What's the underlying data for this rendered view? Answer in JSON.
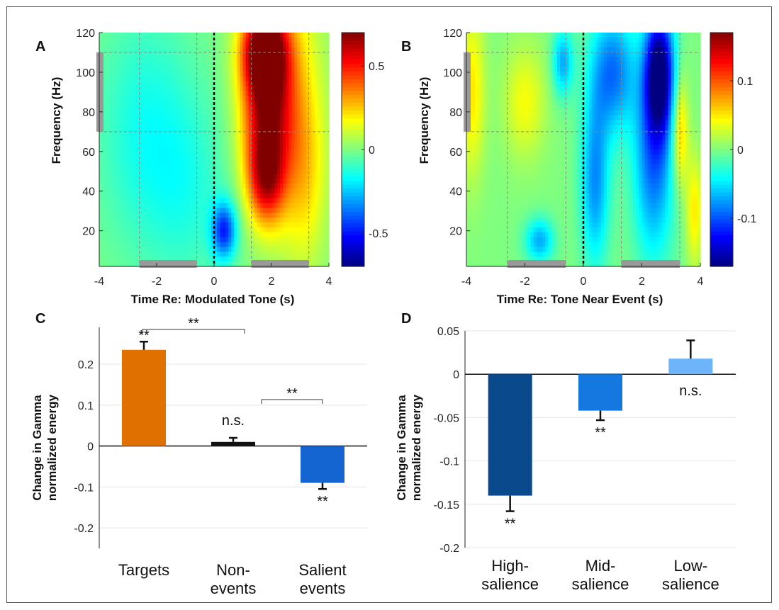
{
  "chart_data": [
    {
      "panel": "A",
      "type": "heatmap",
      "xlabel": "Time Re: Modulated Tone (s)",
      "ylabel": "Frequency (Hz)",
      "xlim": [
        -4,
        4
      ],
      "ylim": [
        2,
        120
      ],
      "xticks": [
        "-4",
        "-2",
        "0",
        "2",
        "4"
      ],
      "yticks": [
        "20",
        "40",
        "60",
        "80",
        "100",
        "120"
      ],
      "colorbar": {
        "ticks": [
          "-0.5",
          "0",
          "0.5"
        ],
        "range": [
          -0.7,
          0.7
        ]
      },
      "event_time": 0,
      "gamma_band": [
        70,
        110
      ],
      "baseline_window": [
        -2.6,
        -0.6
      ],
      "analysis_window": [
        1.3,
        3.3
      ],
      "blobs": [
        {
          "t": 1.75,
          "f": 112,
          "st": 0.55,
          "sf": 16,
          "v": 0.72
        },
        {
          "t": 1.8,
          "f": 78,
          "st": 0.6,
          "sf": 26,
          "v": 0.55
        },
        {
          "t": 1.8,
          "f": 45,
          "st": 0.45,
          "sf": 16,
          "v": 0.42
        },
        {
          "t": 2.7,
          "f": 85,
          "st": 0.75,
          "sf": 45,
          "v": 0.22
        },
        {
          "t": 3.2,
          "f": 45,
          "st": 0.5,
          "sf": 30,
          "v": 0.14
        },
        {
          "t": 0.35,
          "f": 20,
          "st": 0.3,
          "sf": 10,
          "v": -0.45
        },
        {
          "t": -2.4,
          "f": 70,
          "st": 1.2,
          "sf": 45,
          "v": -0.15
        },
        {
          "t": -0.8,
          "f": 40,
          "st": 1.0,
          "sf": 35,
          "v": -0.1
        }
      ]
    },
    {
      "panel": "B",
      "type": "heatmap",
      "xlabel": "Time Re: Tone Near Event (s)",
      "ylabel": "Frequency (Hz)",
      "xlim": [
        -4,
        4
      ],
      "ylim": [
        2,
        120
      ],
      "xticks": [
        "-4",
        "-2",
        "0",
        "2",
        "4"
      ],
      "yticks": [
        "20",
        "40",
        "60",
        "80",
        "100",
        "120"
      ],
      "colorbar": {
        "ticks": [
          "-0.1",
          "0",
          "0.1"
        ],
        "range": [
          -0.17,
          0.17
        ]
      },
      "event_time": 0,
      "gamma_band": [
        70,
        110
      ],
      "baseline_window": [
        -2.6,
        -0.6
      ],
      "analysis_window": [
        1.3,
        3.3
      ],
      "blobs": [
        {
          "t": 2.6,
          "f": 100,
          "st": 0.35,
          "sf": 22,
          "v": -0.17
        },
        {
          "t": 2.4,
          "f": 55,
          "st": 0.5,
          "sf": 35,
          "v": -0.09
        },
        {
          "t": 1.0,
          "f": 100,
          "st": 0.55,
          "sf": 22,
          "v": -0.09
        },
        {
          "t": 0.4,
          "f": 45,
          "st": 0.35,
          "sf": 30,
          "v": -0.08
        },
        {
          "t": -0.7,
          "f": 105,
          "st": 0.25,
          "sf": 12,
          "v": -0.07
        },
        {
          "t": -1.5,
          "f": 15,
          "st": 0.35,
          "sf": 8,
          "v": -0.07
        },
        {
          "t": 3.3,
          "f": 70,
          "st": 0.2,
          "sf": 20,
          "v": 0.07
        },
        {
          "t": -3.8,
          "f": 90,
          "st": 0.3,
          "sf": 30,
          "v": 0.05
        },
        {
          "t": -2.0,
          "f": 85,
          "st": 0.5,
          "sf": 20,
          "v": 0.04
        },
        {
          "t": 3.8,
          "f": 30,
          "st": 0.2,
          "sf": 20,
          "v": 0.05
        }
      ]
    },
    {
      "panel": "C",
      "type": "bar",
      "ylabel": "Change in Gamma normalized energy",
      "ylim": [
        -0.25,
        0.29
      ],
      "yticks": [
        "0.2",
        "0.1",
        "0",
        "-0.1",
        "-0.2"
      ],
      "categories": [
        "Targets",
        "Non-events",
        "Salient events"
      ],
      "category_lines": [
        [
          "Targets"
        ],
        [
          "Non-",
          "events"
        ],
        [
          "Salient",
          "events"
        ]
      ],
      "values": [
        0.235,
        0.01,
        -0.09
      ],
      "errors": [
        0.02,
        0.01,
        0.015
      ],
      "colors": [
        "#E07000",
        "#111111",
        "#1464D2"
      ],
      "bar_annotations": [
        "**",
        "n.s.",
        "**"
      ],
      "comparison_annotations": [
        "**",
        "**"
      ]
    },
    {
      "panel": "D",
      "type": "bar",
      "ylabel": "Change in Gamma normalized energy",
      "ylim": [
        -0.2,
        0.05
      ],
      "yticks": [
        "0.05",
        "0",
        "-0.05",
        "-0.1",
        "-0.15",
        "-0.2"
      ],
      "categories": [
        "High-salience",
        "Mid-salience",
        "Low-salience"
      ],
      "category_lines": [
        [
          "High-",
          "salience"
        ],
        [
          "Mid-",
          "salience"
        ],
        [
          "Low-",
          "salience"
        ]
      ],
      "values": [
        -0.14,
        -0.042,
        0.018
      ],
      "errors": [
        0.018,
        0.011,
        0.021
      ],
      "colors": [
        "#0A4A8C",
        "#1478E0",
        "#6EB4FA"
      ],
      "bar_annotations": [
        "**",
        "**",
        "n.s."
      ]
    }
  ]
}
